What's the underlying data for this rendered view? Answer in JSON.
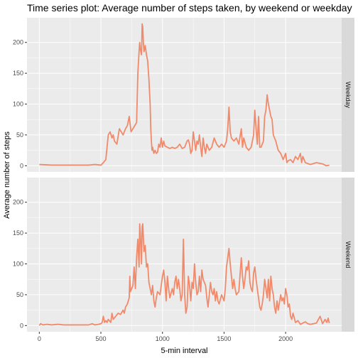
{
  "chart_data": {
    "type": "line",
    "title": "Time series plot: Average number of steps taken, by weekend or weekday",
    "xlabel": "5-min interval",
    "ylabel": "Average number of steps",
    "xlim": [
      -100,
      2455
    ],
    "ylim": [
      -10,
      240
    ],
    "x_ticks": [
      0,
      500,
      1000,
      1500,
      2000
    ],
    "y_ticks": [
      0,
      50,
      100,
      150,
      200
    ],
    "grid": true,
    "line_color": "#F08A6A",
    "panel_bg": "#EBEBEB",
    "strip_bg": "#D9D9D9",
    "facets": [
      {
        "name": "Weekday",
        "points": [
          [
            0,
            2
          ],
          [
            100,
            1
          ],
          [
            200,
            1
          ],
          [
            300,
            1
          ],
          [
            400,
            1
          ],
          [
            450,
            2
          ],
          [
            500,
            1
          ],
          [
            520,
            5
          ],
          [
            540,
            10
          ],
          [
            550,
            30
          ],
          [
            560,
            50
          ],
          [
            575,
            55
          ],
          [
            590,
            45
          ],
          [
            600,
            50
          ],
          [
            610,
            40
          ],
          [
            630,
            35
          ],
          [
            650,
            60
          ],
          [
            665,
            55
          ],
          [
            680,
            50
          ],
          [
            700,
            60
          ],
          [
            715,
            65
          ],
          [
            730,
            80
          ],
          [
            745,
            55
          ],
          [
            760,
            60
          ],
          [
            775,
            65
          ],
          [
            790,
            70
          ],
          [
            800,
            150
          ],
          [
            810,
            185
          ],
          [
            815,
            200
          ],
          [
            820,
            190
          ],
          [
            830,
            180
          ],
          [
            835,
            230
          ],
          [
            840,
            225
          ],
          [
            845,
            200
          ],
          [
            850,
            185
          ],
          [
            860,
            195
          ],
          [
            870,
            180
          ],
          [
            880,
            170
          ],
          [
            890,
            140
          ],
          [
            900,
            100
          ],
          [
            905,
            60
          ],
          [
            910,
            40
          ],
          [
            915,
            25
          ],
          [
            920,
            30
          ],
          [
            930,
            20
          ],
          [
            940,
            25
          ],
          [
            950,
            20
          ],
          [
            960,
            22
          ],
          [
            970,
            35
          ],
          [
            980,
            30
          ],
          [
            990,
            45
          ],
          [
            1000,
            30
          ],
          [
            1010,
            40
          ],
          [
            1020,
            32
          ],
          [
            1040,
            30
          ],
          [
            1060,
            28
          ],
          [
            1080,
            30
          ],
          [
            1100,
            28
          ],
          [
            1120,
            30
          ],
          [
            1140,
            35
          ],
          [
            1160,
            28
          ],
          [
            1180,
            30
          ],
          [
            1200,
            40
          ],
          [
            1210,
            42
          ],
          [
            1220,
            35
          ],
          [
            1230,
            20
          ],
          [
            1240,
            25
          ],
          [
            1250,
            55
          ],
          [
            1260,
            40
          ],
          [
            1270,
            25
          ],
          [
            1280,
            40
          ],
          [
            1290,
            35
          ],
          [
            1300,
            50
          ],
          [
            1310,
            30
          ],
          [
            1320,
            15
          ],
          [
            1330,
            45
          ],
          [
            1340,
            30
          ],
          [
            1350,
            20
          ],
          [
            1360,
            35
          ],
          [
            1380,
            25
          ],
          [
            1400,
            30
          ],
          [
            1420,
            45
          ],
          [
            1440,
            35
          ],
          [
            1460,
            30
          ],
          [
            1480,
            35
          ],
          [
            1500,
            30
          ],
          [
            1520,
            40
          ],
          [
            1530,
            60
          ],
          [
            1540,
            95
          ],
          [
            1550,
            55
          ],
          [
            1560,
            45
          ],
          [
            1580,
            40
          ],
          [
            1600,
            45
          ],
          [
            1620,
            35
          ],
          [
            1640,
            60
          ],
          [
            1650,
            30
          ],
          [
            1660,
            45
          ],
          [
            1680,
            30
          ],
          [
            1700,
            25
          ],
          [
            1720,
            30
          ],
          [
            1740,
            50
          ],
          [
            1750,
            90
          ],
          [
            1760,
            60
          ],
          [
            1770,
            35
          ],
          [
            1780,
            80
          ],
          [
            1790,
            30
          ],
          [
            1800,
            30
          ],
          [
            1820,
            40
          ],
          [
            1830,
            80
          ],
          [
            1840,
            90
          ],
          [
            1850,
            115
          ],
          [
            1860,
            100
          ],
          [
            1870,
            90
          ],
          [
            1880,
            80
          ],
          [
            1890,
            75
          ],
          [
            1900,
            50
          ],
          [
            1920,
            40
          ],
          [
            1940,
            25
          ],
          [
            1960,
            20
          ],
          [
            1980,
            10
          ],
          [
            2000,
            20
          ],
          [
            2010,
            5
          ],
          [
            2020,
            8
          ],
          [
            2040,
            10
          ],
          [
            2060,
            5
          ],
          [
            2080,
            15
          ],
          [
            2100,
            10
          ],
          [
            2120,
            20
          ],
          [
            2130,
            5
          ],
          [
            2140,
            15
          ],
          [
            2160,
            5
          ],
          [
            2200,
            2
          ],
          [
            2250,
            5
          ],
          [
            2300,
            3
          ],
          [
            2330,
            0
          ],
          [
            2355,
            1
          ]
        ]
      },
      {
        "name": "Weekend",
        "points": [
          [
            0,
            0
          ],
          [
            10,
            3
          ],
          [
            30,
            1
          ],
          [
            60,
            2
          ],
          [
            100,
            1
          ],
          [
            150,
            2
          ],
          [
            200,
            1
          ],
          [
            300,
            1
          ],
          [
            400,
            1
          ],
          [
            430,
            3
          ],
          [
            450,
            1
          ],
          [
            480,
            2
          ],
          [
            500,
            3
          ],
          [
            510,
            5
          ],
          [
            520,
            15
          ],
          [
            530,
            5
          ],
          [
            540,
            8
          ],
          [
            550,
            5
          ],
          [
            560,
            10
          ],
          [
            580,
            5
          ],
          [
            590,
            20
          ],
          [
            600,
            10
          ],
          [
            620,
            15
          ],
          [
            640,
            20
          ],
          [
            660,
            18
          ],
          [
            680,
            25
          ],
          [
            690,
            20
          ],
          [
            700,
            30
          ],
          [
            715,
            35
          ],
          [
            730,
            45
          ],
          [
            735,
            80
          ],
          [
            740,
            55
          ],
          [
            750,
            60
          ],
          [
            760,
            65
          ],
          [
            770,
            95
          ],
          [
            780,
            60
          ],
          [
            790,
            110
          ],
          [
            800,
            140
          ],
          [
            810,
            95
          ],
          [
            815,
            165
          ],
          [
            820,
            150
          ],
          [
            830,
            100
          ],
          [
            835,
            160
          ],
          [
            840,
            165
          ],
          [
            850,
            120
          ],
          [
            860,
            130
          ],
          [
            870,
            95
          ],
          [
            880,
            100
          ],
          [
            890,
            70
          ],
          [
            900,
            60
          ],
          [
            910,
            50
          ],
          [
            920,
            65
          ],
          [
            930,
            40
          ],
          [
            940,
            30
          ],
          [
            950,
            45
          ],
          [
            960,
            55
          ],
          [
            980,
            50
          ],
          [
            1000,
            80
          ],
          [
            1010,
            90
          ],
          [
            1020,
            70
          ],
          [
            1030,
            40
          ],
          [
            1040,
            80
          ],
          [
            1050,
            60
          ],
          [
            1060,
            45
          ],
          [
            1080,
            60
          ],
          [
            1090,
            50
          ],
          [
            1100,
            70
          ],
          [
            1110,
            80
          ],
          [
            1120,
            60
          ],
          [
            1130,
            75
          ],
          [
            1140,
            60
          ],
          [
            1150,
            40
          ],
          [
            1160,
            50
          ],
          [
            1170,
            140
          ],
          [
            1180,
            50
          ],
          [
            1190,
            20
          ],
          [
            1200,
            30
          ],
          [
            1210,
            80
          ],
          [
            1220,
            65
          ],
          [
            1230,
            40
          ],
          [
            1240,
            70
          ],
          [
            1250,
            60
          ],
          [
            1260,
            100
          ],
          [
            1270,
            70
          ],
          [
            1280,
            50
          ],
          [
            1290,
            55
          ],
          [
            1300,
            80
          ],
          [
            1310,
            55
          ],
          [
            1320,
            90
          ],
          [
            1330,
            75
          ],
          [
            1340,
            70
          ],
          [
            1350,
            65
          ],
          [
            1360,
            45
          ],
          [
            1370,
            30
          ],
          [
            1380,
            50
          ],
          [
            1390,
            70
          ],
          [
            1400,
            55
          ],
          [
            1410,
            50
          ],
          [
            1420,
            60
          ],
          [
            1430,
            40
          ],
          [
            1440,
            55
          ],
          [
            1450,
            40
          ],
          [
            1460,
            35
          ],
          [
            1480,
            50
          ],
          [
            1500,
            40
          ],
          [
            1510,
            60
          ],
          [
            1520,
            95
          ],
          [
            1530,
            110
          ],
          [
            1540,
            125
          ],
          [
            1550,
            100
          ],
          [
            1560,
            80
          ],
          [
            1570,
            60
          ],
          [
            1580,
            75
          ],
          [
            1590,
            60
          ],
          [
            1600,
            50
          ],
          [
            1620,
            55
          ],
          [
            1640,
            110
          ],
          [
            1650,
            80
          ],
          [
            1660,
            60
          ],
          [
            1670,
            75
          ],
          [
            1680,
            95
          ],
          [
            1690,
            90
          ],
          [
            1700,
            105
          ],
          [
            1710,
            70
          ],
          [
            1720,
            60
          ],
          [
            1730,
            55
          ],
          [
            1740,
            85
          ],
          [
            1750,
            95
          ],
          [
            1760,
            75
          ],
          [
            1770,
            60
          ],
          [
            1780,
            45
          ],
          [
            1790,
            30
          ],
          [
            1800,
            25
          ],
          [
            1810,
            35
          ],
          [
            1820,
            50
          ],
          [
            1830,
            75
          ],
          [
            1840,
            60
          ],
          [
            1850,
            45
          ],
          [
            1860,
            75
          ],
          [
            1870,
            40
          ],
          [
            1880,
            80
          ],
          [
            1890,
            60
          ],
          [
            1900,
            50
          ],
          [
            1910,
            30
          ],
          [
            1920,
            20
          ],
          [
            1930,
            40
          ],
          [
            1940,
            25
          ],
          [
            1960,
            50
          ],
          [
            1970,
            40
          ],
          [
            1980,
            45
          ],
          [
            1990,
            35
          ],
          [
            2000,
            60
          ],
          [
            2010,
            50
          ],
          [
            2020,
            30
          ],
          [
            2030,
            35
          ],
          [
            2040,
            15
          ],
          [
            2050,
            10
          ],
          [
            2060,
            20
          ],
          [
            2080,
            5
          ],
          [
            2100,
            8
          ],
          [
            2120,
            2
          ],
          [
            2140,
            4
          ],
          [
            2160,
            6
          ],
          [
            2180,
            3
          ],
          [
            2200,
            2
          ],
          [
            2250,
            4
          ],
          [
            2280,
            15
          ],
          [
            2300,
            3
          ],
          [
            2320,
            10
          ],
          [
            2335,
            5
          ],
          [
            2345,
            12
          ],
          [
            2355,
            4
          ]
        ]
      }
    ]
  }
}
